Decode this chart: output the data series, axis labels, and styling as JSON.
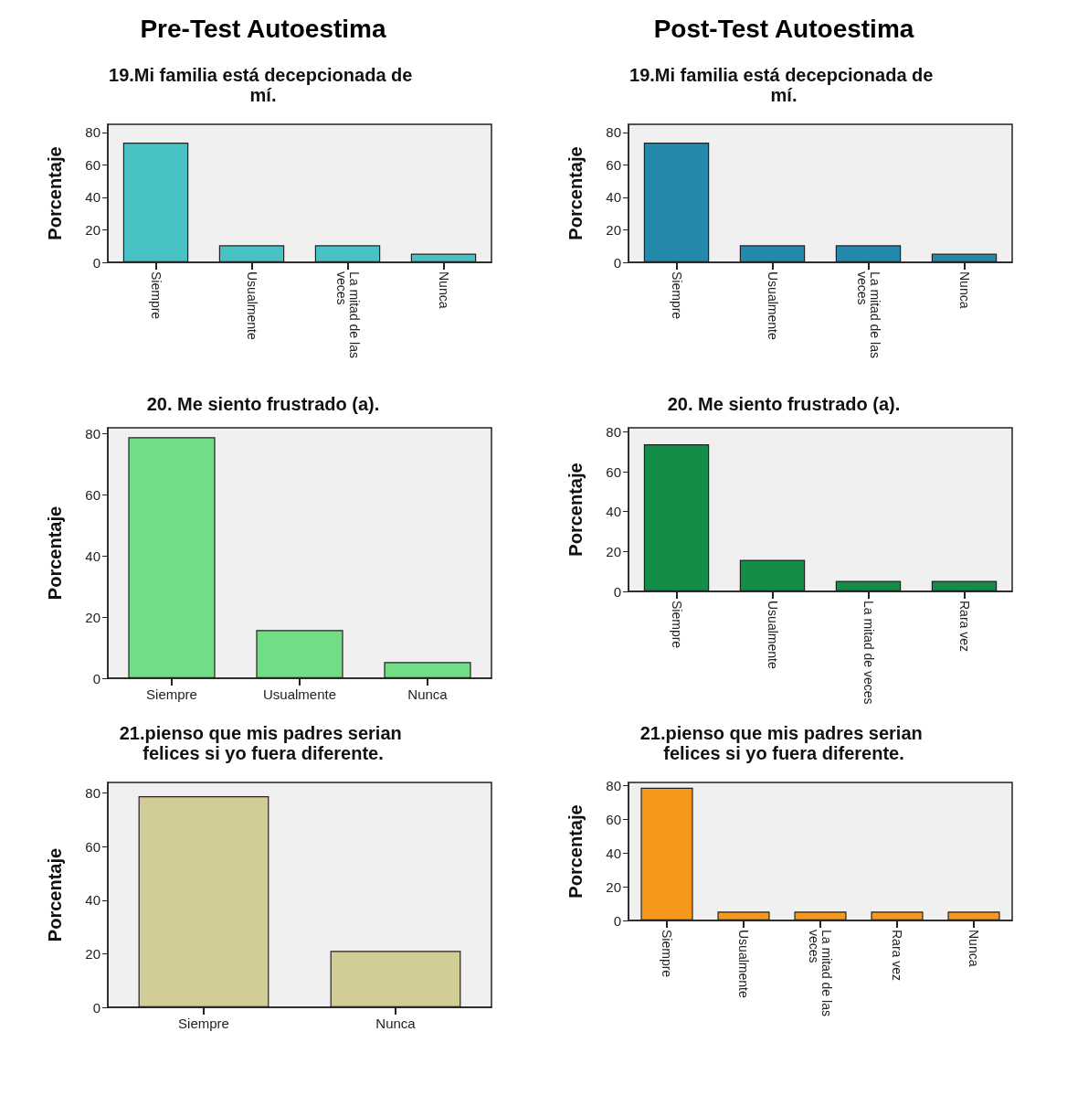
{
  "chart_data": [
    {
      "type": "other",
      "title": "Pre-Test Autoestima"
    },
    {
      "type": "other",
      "title": "Post-Test Autoestima"
    },
    {
      "type": "bar",
      "title": "19.Mi familia está decepcionada de mí.",
      "ylabel": "Porcentaje",
      "categories": [
        "Siempre",
        "Usualmente",
        "La mitad de las veces",
        "Nunca"
      ],
      "values": [
        73.7,
        10.5,
        10.5,
        5.3
      ],
      "color": "#48c2c5",
      "ylim": [
        0,
        85
      ],
      "yticks": [
        0,
        20,
        40,
        60,
        80
      ],
      "grid": false
    },
    {
      "type": "bar",
      "title": "19.Mi familia está decepcionada de mí.",
      "ylabel": "Porcentaje",
      "categories": [
        "Siempre",
        "Usualmente",
        "La mitad de las veces",
        "Nunca"
      ],
      "values": [
        73.7,
        10.5,
        10.5,
        5.3
      ],
      "color": "#2589ab",
      "ylim": [
        0,
        85
      ],
      "yticks": [
        0,
        20,
        40,
        60,
        80
      ],
      "grid": false
    },
    {
      "type": "bar",
      "title": "20. Me siento frustrado (a).",
      "ylabel": "Porcentaje",
      "categories": [
        "Siempre",
        "Usualmente",
        "Nunca"
      ],
      "values": [
        78.9,
        15.8,
        5.3
      ],
      "color": "#72dc86",
      "ylim": [
        0,
        82
      ],
      "yticks": [
        0,
        20,
        40,
        60,
        80
      ],
      "grid": false
    },
    {
      "type": "bar",
      "title": "20. Me siento frustrado (a).",
      "ylabel": "Porcentaje",
      "categories": [
        "Siempre",
        "Usualmente",
        "La mitad de veces",
        "Rara vez"
      ],
      "values": [
        73.7,
        15.8,
        5.3,
        5.3
      ],
      "color": "#138d47",
      "ylim": [
        0,
        82
      ],
      "yticks": [
        0,
        20,
        40,
        60,
        80
      ],
      "grid": false
    },
    {
      "type": "bar",
      "title": "21.pienso que mis padres serian felices si yo fuera diferente.",
      "ylabel": "Porcentaje",
      "categories": [
        "Siempre",
        "Nunca"
      ],
      "values": [
        78.9,
        21.1
      ],
      "color": "#d2cc96",
      "ylim": [
        0,
        84
      ],
      "yticks": [
        0,
        20,
        40,
        60,
        80
      ],
      "grid": false
    },
    {
      "type": "bar",
      "title": "21.pienso que mis padres serian felices si yo fuera diferente.",
      "ylabel": "Porcentaje",
      "categories": [
        "Siempre",
        "Usualmente",
        "La mitad de las veces",
        "Rara vez",
        "Nunca"
      ],
      "values": [
        78.9,
        5.3,
        5.3,
        5.3,
        5.3
      ],
      "color": "#f7981d",
      "ylim": [
        0,
        82
      ],
      "yticks": [
        0,
        20,
        40,
        60,
        80
      ],
      "grid": false
    }
  ]
}
